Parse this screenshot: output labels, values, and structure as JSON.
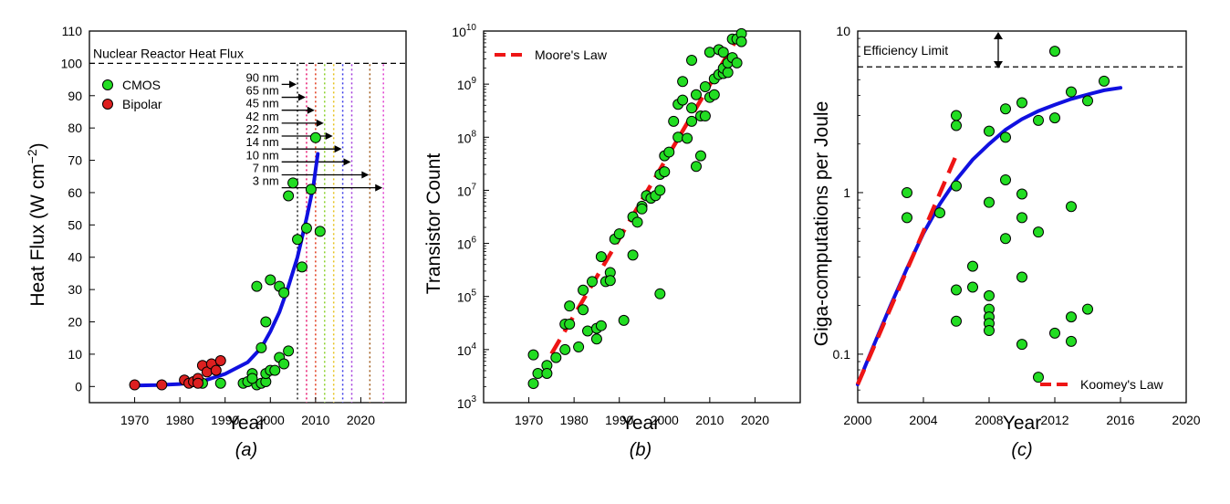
{
  "colors": {
    "cmos": "#22dd22",
    "bipolar": "#dd2020",
    "fit": "#1010e0",
    "law": "#ee1515",
    "node_lines": [
      "#222222",
      "#e8176f",
      "#e03a1a",
      "#8ad12a",
      "#e6c21a",
      "#3a3ae8",
      "#a43adc",
      "#a05a1a",
      "#e040d0"
    ]
  },
  "chart_data": [
    {
      "type": "scatter",
      "panel_label": "(a)",
      "xlabel": "Year",
      "ylabel_main": "Heat Flux (W cm",
      "ylabel_sup": "−2",
      "ylabel_close": ")",
      "xlim": [
        1960,
        2030
      ],
      "ylim": [
        -5,
        110
      ],
      "xticks": [
        1970,
        1980,
        1990,
        2000,
        2010,
        2020
      ],
      "yticks": [
        0,
        10,
        20,
        30,
        40,
        50,
        60,
        70,
        80,
        90,
        100,
        110
      ],
      "reference_line": {
        "y": 100,
        "label": "Nuclear Reactor Heat Flux"
      },
      "legend": [
        {
          "label": "CMOS",
          "series": "cmos"
        },
        {
          "label": "Bipolar",
          "series": "bipolar"
        }
      ],
      "process_nodes": [
        {
          "label": "90 nm",
          "year": 2006,
          "arrow_y": 93.5
        },
        {
          "label": "65 nm",
          "year": 2008,
          "arrow_y": 89.5
        },
        {
          "label": "45 nm",
          "year": 2010,
          "arrow_y": 85.5
        },
        {
          "label": "42 nm",
          "year": 2012,
          "arrow_y": 81.5
        },
        {
          "label": "22 nm",
          "year": 2014,
          "arrow_y": 77.5
        },
        {
          "label": "14 nm",
          "year": 2016,
          "arrow_y": 73.5
        },
        {
          "label": "10 nm",
          "year": 2018,
          "arrow_y": 69.5
        },
        {
          "label": "7 nm",
          "year": 2022,
          "arrow_y": 65.5
        },
        {
          "label": "3 nm",
          "year": 2025,
          "arrow_y": 61.5
        }
      ],
      "series": [
        {
          "name": "CMOS",
          "points": [
            [
              1985,
              1
            ],
            [
              1994,
              1
            ],
            [
              1995,
              1.5
            ],
            [
              1996,
              4
            ],
            [
              1997,
              0.5
            ],
            [
              1998,
              1
            ],
            [
              1999,
              1.5
            ],
            [
              1996,
              2.5
            ],
            [
              1997,
              31
            ],
            [
              1998,
              12
            ],
            [
              1999,
              20
            ],
            [
              2000,
              33
            ],
            [
              1999,
              4
            ],
            [
              2000,
              5
            ],
            [
              2001,
              5
            ],
            [
              2002,
              31
            ],
            [
              2003,
              29
            ],
            [
              2002,
              9
            ],
            [
              2003,
              7
            ],
            [
              2004,
              11
            ],
            [
              2004,
              59
            ],
            [
              2005,
              63
            ],
            [
              2006,
              45.5
            ],
            [
              2007,
              37
            ],
            [
              2008,
              49
            ],
            [
              2009,
              61
            ],
            [
              2010,
              77
            ],
            [
              2011,
              48
            ],
            [
              1989,
              1
            ]
          ]
        },
        {
          "name": "Bipolar",
          "points": [
            [
              1970,
              0.5
            ],
            [
              1976,
              0.5
            ],
            [
              1981,
              2
            ],
            [
              1982,
              1
            ],
            [
              1983,
              1.5
            ],
            [
              1984,
              2.5
            ],
            [
              1985,
              6.5
            ],
            [
              1986,
              4.5
            ],
            [
              1987,
              7
            ],
            [
              1988,
              5
            ],
            [
              1989,
              8
            ],
            [
              1984,
              1
            ]
          ]
        }
      ],
      "fit_curve": [
        [
          1970,
          0.3
        ],
        [
          1975,
          0.45
        ],
        [
          1980,
          0.75
        ],
        [
          1985,
          1.6
        ],
        [
          1990,
          3.9
        ],
        [
          1995,
          7.5
        ],
        [
          1998,
          12
        ],
        [
          2000,
          17
        ],
        [
          2002,
          23
        ],
        [
          2004,
          31
        ],
        [
          2006,
          40
        ],
        [
          2008,
          52
        ],
        [
          2009.5,
          62
        ],
        [
          2010.5,
          72
        ]
      ]
    },
    {
      "type": "scatter",
      "panel_label": "(b)",
      "xlabel": "Year",
      "ylabel": "Transistor Count",
      "xlim": [
        1960,
        2030
      ],
      "ylim_log10": [
        3,
        10
      ],
      "xticks": [
        1970,
        1980,
        1990,
        2000,
        2010,
        2020
      ],
      "yticks_exp": [
        3,
        4,
        5,
        6,
        7,
        8,
        9,
        10
      ],
      "ytick_base": "10",
      "legend": [
        {
          "label": "Moore's Law",
          "series": "law"
        }
      ],
      "law_line": [
        [
          1975,
          3.92
        ],
        [
          2017,
          10
        ]
      ],
      "series": [
        {
          "name": "CMOS",
          "points_log10": [
            [
              1971,
              3.36
            ],
            [
              1971,
              3.9
            ],
            [
              1972,
              3.55
            ],
            [
              1974,
              3.7
            ],
            [
              1974,
              3.55
            ],
            [
              1976,
              3.85
            ],
            [
              1978,
              4.0
            ],
            [
              1978,
              4.48
            ],
            [
              1979,
              4.48
            ],
            [
              1979,
              4.82
            ],
            [
              1981,
              4.05
            ],
            [
              1982,
              4.75
            ],
            [
              1982,
              5.12
            ],
            [
              1983,
              4.35
            ],
            [
              1984,
              5.28
            ],
            [
              1985,
              4.2
            ],
            [
              1985,
              4.4
            ],
            [
              1986,
              4.45
            ],
            [
              1986,
              5.75
            ],
            [
              1987,
              5.28
            ],
            [
              1988,
              5.45
            ],
            [
              1988,
              5.3
            ],
            [
              1989,
              6.08
            ],
            [
              1990,
              6.18
            ],
            [
              1991,
              4.55
            ],
            [
              1993,
              6.5
            ],
            [
              1993,
              5.78
            ],
            [
              1994,
              6.4
            ],
            [
              1995,
              6.7
            ],
            [
              1995,
              6.65
            ],
            [
              1996,
              6.9
            ],
            [
              1997,
              6.85
            ],
            [
              1998,
              6.9
            ],
            [
              1999,
              7.0
            ],
            [
              1999,
              7.3
            ],
            [
              1999,
              5.05
            ],
            [
              2000,
              7.35
            ],
            [
              2000,
              7.65
            ],
            [
              2001,
              7.72
            ],
            [
              2002,
              8.3
            ],
            [
              2003,
              8.62
            ],
            [
              2003,
              8.0
            ],
            [
              2004,
              8.7
            ],
            [
              2004,
              9.05
            ],
            [
              2005,
              7.98
            ],
            [
              2006,
              8.55
            ],
            [
              2006,
              8.3
            ],
            [
              2006,
              9.45
            ],
            [
              2007,
              7.45
            ],
            [
              2007,
              8.8
            ],
            [
              2008,
              7.65
            ],
            [
              2008,
              8.4
            ],
            [
              2009,
              8.4
            ],
            [
              2009,
              8.95
            ],
            [
              2010,
              9.6
            ],
            [
              2010,
              8.75
            ],
            [
              2011,
              8.8
            ],
            [
              2011,
              9.1
            ],
            [
              2012,
              9.18
            ],
            [
              2012,
              9.65
            ],
            [
              2013,
              9.2
            ],
            [
              2013,
              9.3
            ],
            [
              2013,
              9.6
            ],
            [
              2014,
              9.22
            ],
            [
              2014,
              9.4
            ],
            [
              2015,
              9.85
            ],
            [
              2015,
              9.5
            ],
            [
              2016,
              9.4
            ],
            [
              2016,
              9.85
            ],
            [
              2017,
              9.95
            ],
            [
              2017,
              9.8
            ]
          ]
        }
      ]
    },
    {
      "type": "scatter",
      "panel_label": "(c)",
      "xlabel": "Year",
      "ylabel": "Giga-computations per Joule",
      "xlim": [
        2000,
        2020
      ],
      "ylim_log10": [
        -1.3,
        1
      ],
      "xticks": [
        2000,
        2004,
        2008,
        2012,
        2016,
        2020
      ],
      "yticks": [
        {
          "label": "0.1",
          "log10": -1
        },
        {
          "label": "1",
          "log10": 0
        },
        {
          "label": "10",
          "log10": 1
        }
      ],
      "reference_line": {
        "y": 6,
        "label": "Efficiency Limit"
      },
      "legend": [
        {
          "label": "Koomey's Law",
          "series": "law"
        }
      ],
      "law_line": [
        [
          2000,
          0.065
        ],
        [
          2006.1,
          1.8
        ]
      ],
      "series": [
        {
          "name": "CMOS",
          "points": [
            [
              2003,
              1.0
            ],
            [
              2003,
              0.7
            ],
            [
              2005,
              0.75
            ],
            [
              2006,
              3.0
            ],
            [
              2006,
              2.6
            ],
            [
              2006,
              1.1
            ],
            [
              2006,
              0.25
            ],
            [
              2006,
              0.16
            ],
            [
              2007,
              0.35
            ],
            [
              2007,
              0.26
            ],
            [
              2008,
              2.4
            ],
            [
              2008,
              0.87
            ],
            [
              2008,
              0.23
            ],
            [
              2008,
              0.19
            ],
            [
              2008,
              0.17
            ],
            [
              2008,
              0.155
            ],
            [
              2008,
              0.14
            ],
            [
              2009,
              3.3
            ],
            [
              2009,
              2.2
            ],
            [
              2009,
              1.2
            ],
            [
              2009,
              0.52
            ],
            [
              2010,
              3.6
            ],
            [
              2010,
              0.98
            ],
            [
              2010,
              0.7
            ],
            [
              2010,
              0.3
            ],
            [
              2010,
              0.115
            ],
            [
              2011,
              2.8
            ],
            [
              2011,
              0.57
            ],
            [
              2011,
              0.072
            ],
            [
              2012,
              7.5
            ],
            [
              2012,
              2.9
            ],
            [
              2012,
              0.135
            ],
            [
              2013,
              4.2
            ],
            [
              2013,
              0.82
            ],
            [
              2013,
              0.17
            ],
            [
              2013,
              0.12
            ],
            [
              2014,
              3.7
            ],
            [
              2014,
              0.19
            ],
            [
              2015,
              4.9
            ]
          ]
        }
      ],
      "fit_curve": [
        [
          2000,
          0.065
        ],
        [
          2001,
          0.115
        ],
        [
          2002,
          0.2
        ],
        [
          2003,
          0.34
        ],
        [
          2004,
          0.56
        ],
        [
          2005,
          0.85
        ],
        [
          2006,
          1.2
        ],
        [
          2007,
          1.6
        ],
        [
          2008,
          2.0
        ],
        [
          2009,
          2.45
        ],
        [
          2010,
          2.85
        ],
        [
          2011,
          3.2
        ],
        [
          2012,
          3.5
        ],
        [
          2013,
          3.8
        ],
        [
          2014,
          4.05
        ],
        [
          2015,
          4.3
        ],
        [
          2016,
          4.45
        ]
      ]
    }
  ]
}
